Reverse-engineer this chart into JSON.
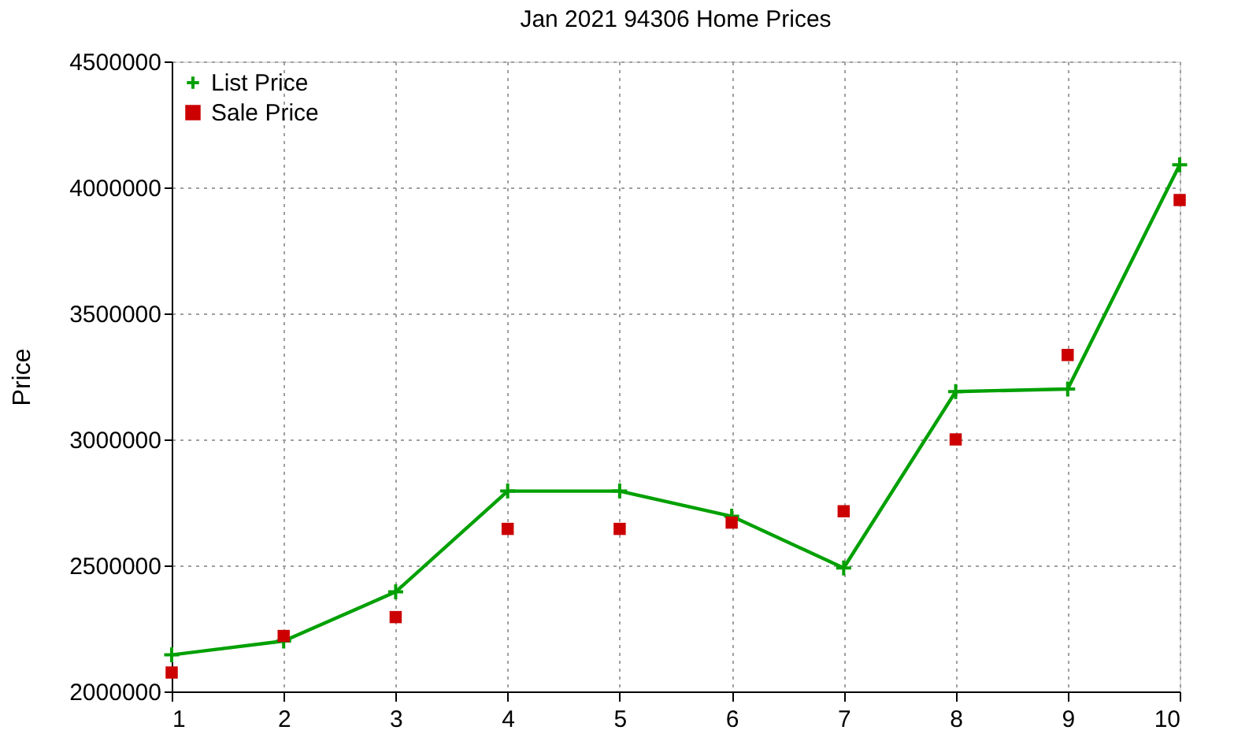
{
  "chart_data": {
    "type": "line",
    "title": "Jan 2021 94306 Home Prices",
    "ylabel": "Price",
    "x": [
      1,
      2,
      3,
      4,
      5,
      6,
      7,
      8,
      9,
      10
    ],
    "series": [
      {
        "name": "List Price",
        "marker": "cross",
        "color": "#00a000",
        "values": [
          2145000,
          2200000,
          2395000,
          2795000,
          2795000,
          2695000,
          2490000,
          3190000,
          3200000,
          4090000
        ]
      },
      {
        "name": "Sale Price",
        "type": "scatter",
        "marker": "square",
        "color": "#cc0000",
        "values": [
          2075000,
          2220000,
          2295000,
          2645000,
          2645000,
          2670000,
          2715000,
          3000000,
          3335000,
          3950000
        ]
      }
    ],
    "xlim": [
      1,
      10
    ],
    "xticks": [
      1,
      2,
      3,
      4,
      5,
      6,
      7,
      8,
      9,
      10
    ],
    "ylim": [
      2000000,
      4500000
    ],
    "yticks": [
      2000000,
      2500000,
      3000000,
      3500000,
      4000000,
      4500000
    ],
    "grid": true,
    "legend": "top left"
  }
}
